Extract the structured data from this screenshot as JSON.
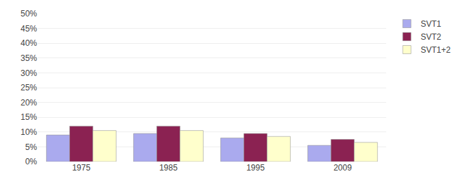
{
  "chart_data": {
    "type": "bar",
    "categories": [
      "1975",
      "1985",
      "1995",
      "2009"
    ],
    "series": [
      {
        "name": "SVT1",
        "color": "#aaaaee",
        "values": [
          9.0,
          9.5,
          8.0,
          5.5
        ]
      },
      {
        "name": "SVT2",
        "color": "#8B2252",
        "values": [
          12.0,
          12.0,
          9.5,
          7.5
        ]
      },
      {
        "name": "SVT1+2",
        "color": "#FFFFCC",
        "values": [
          10.5,
          10.5,
          8.5,
          6.5
        ]
      }
    ],
    "ylim": [
      0,
      50
    ],
    "yticks": [
      {
        "value": 0,
        "label": "0%"
      },
      {
        "value": 5,
        "label": "5%"
      },
      {
        "value": 10,
        "label": "10%"
      },
      {
        "value": 15,
        "label": "15%"
      },
      {
        "value": 20,
        "label": "20%"
      },
      {
        "value": 25,
        "label": "25%"
      },
      {
        "value": 30,
        "label": "30%"
      },
      {
        "value": 35,
        "label": "35%"
      },
      {
        "value": 40,
        "label": "40%"
      },
      {
        "value": 45,
        "label": "45%"
      },
      {
        "value": 50,
        "label": "50%"
      }
    ],
    "grid": true,
    "legend": "upper right"
  }
}
